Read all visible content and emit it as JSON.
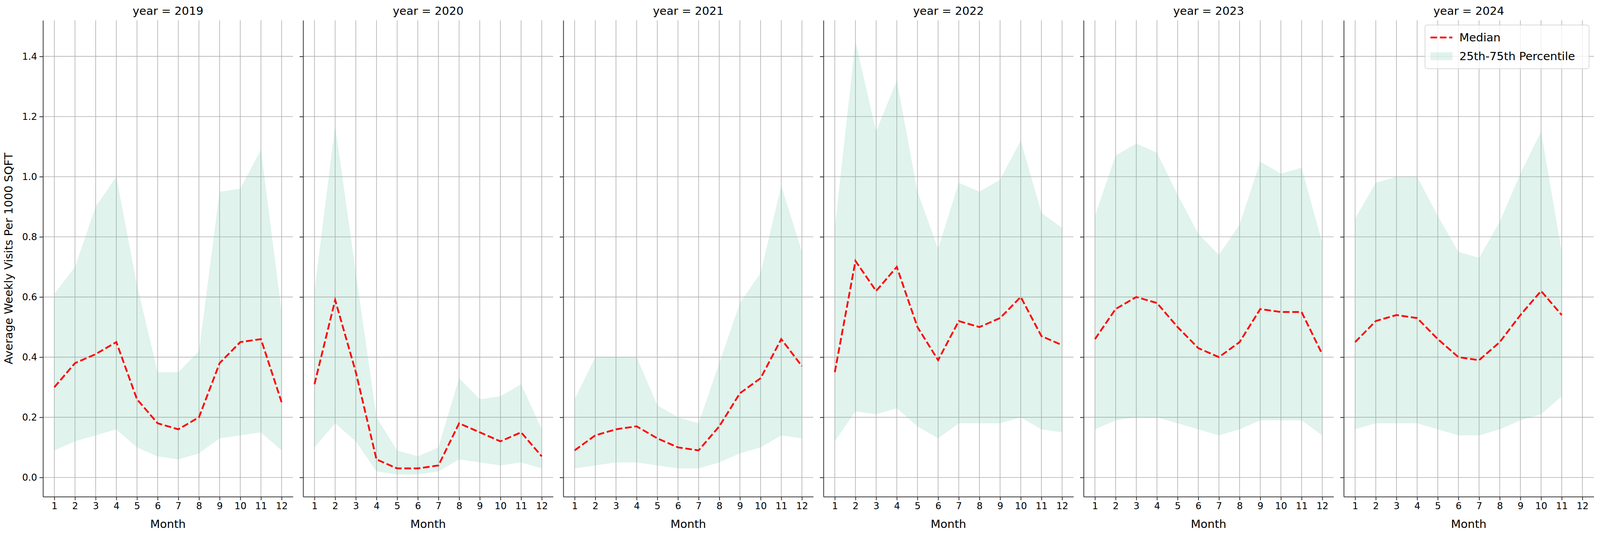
{
  "chart_data": [
    {
      "type": "line",
      "title": "year = 2019",
      "x_label": "Month",
      "y_label": "Average Weekly Visits Per 1000 SQFT",
      "x": [
        1,
        2,
        3,
        4,
        5,
        6,
        7,
        8,
        9,
        10,
        11,
        12
      ],
      "series": [
        {
          "name": "Median",
          "type": "line",
          "color": "#ff0000",
          "line_style": "dashed",
          "marker": "none",
          "values": [
            0.3,
            0.38,
            0.41,
            0.45,
            0.26,
            0.18,
            0.16,
            0.2,
            0.38,
            0.45,
            0.46,
            0.25
          ]
        },
        {
          "name": "25th-75th Percentile",
          "type": "area",
          "color": "#66c2a5",
          "lower": [
            0.09,
            0.12,
            0.14,
            0.16,
            0.1,
            0.07,
            0.06,
            0.08,
            0.13,
            0.14,
            0.15,
            0.09
          ],
          "upper": [
            0.61,
            0.7,
            0.9,
            1.0,
            0.64,
            0.35,
            0.35,
            0.42,
            0.95,
            0.96,
            1.09,
            0.55
          ]
        }
      ],
      "xlim": [
        0.45,
        12.55
      ],
      "xticks": [
        1,
        2,
        3,
        4,
        5,
        6,
        7,
        8,
        9,
        10,
        11,
        12
      ],
      "ylim": [
        -0.064,
        1.52
      ],
      "yticks": [
        {
          "value": 0,
          "label": "0.0"
        },
        {
          "value": 0.2,
          "label": "0.2"
        },
        {
          "value": 0.4,
          "label": "0.4"
        },
        {
          "value": 0.6,
          "label": "0.6"
        },
        {
          "value": 0.8,
          "label": "0.8"
        },
        {
          "value": 1.0,
          "label": "1.0"
        },
        {
          "value": 1.2,
          "label": "1.2"
        },
        {
          "value": 1.4,
          "label": "1.4"
        }
      ],
      "grid": true
    },
    {
      "type": "line",
      "title": "year = 2020",
      "x_label": "Month",
      "x": [
        1,
        2,
        3,
        4,
        5,
        6,
        7,
        8,
        9,
        10,
        11,
        12
      ],
      "series": [
        {
          "name": "Median",
          "type": "line",
          "color": "#ff0000",
          "line_style": "dashed",
          "marker": "none",
          "values": [
            0.31,
            0.59,
            0.35,
            0.06,
            0.03,
            0.03,
            0.04,
            0.18,
            0.15,
            0.12,
            0.15,
            0.07
          ]
        },
        {
          "name": "25th-75th Percentile",
          "type": "area",
          "color": "#66c2a5",
          "lower": [
            0.1,
            0.18,
            0.12,
            0.02,
            0.01,
            0.01,
            0.02,
            0.06,
            0.05,
            0.04,
            0.05,
            0.03
          ],
          "upper": [
            0.62,
            1.17,
            0.68,
            0.2,
            0.09,
            0.07,
            0.1,
            0.33,
            0.26,
            0.27,
            0.31,
            0.16
          ]
        }
      ],
      "xlim": [
        0.45,
        12.55
      ],
      "xticks": [
        1,
        2,
        3,
        4,
        5,
        6,
        7,
        8,
        9,
        10,
        11,
        12
      ],
      "ylim": [
        -0.064,
        1.52
      ],
      "yticks": [
        {
          "value": 0,
          "label": "0.0"
        },
        {
          "value": 0.2,
          "label": "0.2"
        },
        {
          "value": 0.4,
          "label": "0.4"
        },
        {
          "value": 0.6,
          "label": "0.6"
        },
        {
          "value": 0.8,
          "label": "0.8"
        },
        {
          "value": 1.0,
          "label": "1.0"
        },
        {
          "value": 1.2,
          "label": "1.2"
        },
        {
          "value": 1.4,
          "label": "1.4"
        }
      ],
      "grid": true,
      "tick_labels": "x"
    },
    {
      "type": "line",
      "title": "year = 2021",
      "x_label": "Month",
      "x": [
        1,
        2,
        3,
        4,
        5,
        6,
        7,
        8,
        9,
        10,
        11,
        12
      ],
      "series": [
        {
          "name": "Median",
          "type": "line",
          "color": "#ff0000",
          "line_style": "dashed",
          "marker": "none",
          "values": [
            0.09,
            0.14,
            0.16,
            0.17,
            0.13,
            0.1,
            0.09,
            0.17,
            0.28,
            0.33,
            0.46,
            0.37
          ]
        },
        {
          "name": "25th-75th Percentile",
          "type": "area",
          "color": "#66c2a5",
          "lower": [
            0.03,
            0.04,
            0.05,
            0.05,
            0.04,
            0.03,
            0.03,
            0.05,
            0.08,
            0.1,
            0.14,
            0.13
          ],
          "upper": [
            0.26,
            0.4,
            0.4,
            0.4,
            0.24,
            0.2,
            0.18,
            0.38,
            0.58,
            0.68,
            0.97,
            0.75
          ]
        }
      ],
      "xlim": [
        0.45,
        12.55
      ],
      "xticks": [
        1,
        2,
        3,
        4,
        5,
        6,
        7,
        8,
        9,
        10,
        11,
        12
      ],
      "ylim": [
        -0.064,
        1.52
      ],
      "yticks": [
        {
          "value": 0,
          "label": "0.0"
        },
        {
          "value": 0.2,
          "label": "0.2"
        },
        {
          "value": 0.4,
          "label": "0.4"
        },
        {
          "value": 0.6,
          "label": "0.6"
        },
        {
          "value": 0.8,
          "label": "0.8"
        },
        {
          "value": 1.0,
          "label": "1.0"
        },
        {
          "value": 1.2,
          "label": "1.2"
        },
        {
          "value": 1.4,
          "label": "1.4"
        }
      ],
      "grid": true,
      "tick_labels": "x"
    },
    {
      "type": "line",
      "title": "year = 2022",
      "x_label": "Month",
      "x": [
        1,
        2,
        3,
        4,
        5,
        6,
        7,
        8,
        9,
        10,
        11,
        12
      ],
      "series": [
        {
          "name": "Median",
          "type": "line",
          "color": "#ff0000",
          "line_style": "dashed",
          "marker": "none",
          "values": [
            0.35,
            0.72,
            0.62,
            0.7,
            0.5,
            0.39,
            0.52,
            0.5,
            0.53,
            0.6,
            0.47,
            0.44
          ]
        },
        {
          "name": "25th-75th Percentile",
          "type": "area",
          "color": "#66c2a5",
          "lower": [
            0.12,
            0.22,
            0.21,
            0.23,
            0.17,
            0.13,
            0.18,
            0.18,
            0.18,
            0.2,
            0.16,
            0.15
          ],
          "upper": [
            0.83,
            1.45,
            1.15,
            1.32,
            0.95,
            0.76,
            0.98,
            0.95,
            0.99,
            1.12,
            0.88,
            0.83
          ]
        }
      ],
      "xlim": [
        0.45,
        12.55
      ],
      "xticks": [
        1,
        2,
        3,
        4,
        5,
        6,
        7,
        8,
        9,
        10,
        11,
        12
      ],
      "ylim": [
        -0.064,
        1.52
      ],
      "yticks": [
        {
          "value": 0,
          "label": "0.0"
        },
        {
          "value": 0.2,
          "label": "0.2"
        },
        {
          "value": 0.4,
          "label": "0.4"
        },
        {
          "value": 0.6,
          "label": "0.6"
        },
        {
          "value": 0.8,
          "label": "0.8"
        },
        {
          "value": 1.0,
          "label": "1.0"
        },
        {
          "value": 1.2,
          "label": "1.2"
        },
        {
          "value": 1.4,
          "label": "1.4"
        }
      ],
      "grid": true,
      "tick_labels": "x"
    },
    {
      "type": "line",
      "title": "year = 2023",
      "x_label": "Month",
      "x": [
        1,
        2,
        3,
        4,
        5,
        6,
        7,
        8,
        9,
        10,
        11,
        12
      ],
      "series": [
        {
          "name": "Median",
          "type": "line",
          "color": "#ff0000",
          "line_style": "dashed",
          "marker": "none",
          "values": [
            0.46,
            0.56,
            0.6,
            0.58,
            0.5,
            0.43,
            0.4,
            0.45,
            0.56,
            0.55,
            0.55,
            0.41
          ]
        },
        {
          "name": "25th-75th Percentile",
          "type": "area",
          "color": "#66c2a5",
          "lower": [
            0.16,
            0.19,
            0.2,
            0.2,
            0.18,
            0.16,
            0.14,
            0.16,
            0.19,
            0.19,
            0.19,
            0.14
          ],
          "upper": [
            0.87,
            1.07,
            1.11,
            1.08,
            0.94,
            0.81,
            0.74,
            0.84,
            1.05,
            1.01,
            1.03,
            0.78
          ]
        }
      ],
      "xlim": [
        0.45,
        12.55
      ],
      "xticks": [
        1,
        2,
        3,
        4,
        5,
        6,
        7,
        8,
        9,
        10,
        11,
        12
      ],
      "ylim": [
        -0.064,
        1.52
      ],
      "yticks": [
        {
          "value": 0,
          "label": "0.0"
        },
        {
          "value": 0.2,
          "label": "0.2"
        },
        {
          "value": 0.4,
          "label": "0.4"
        },
        {
          "value": 0.6,
          "label": "0.6"
        },
        {
          "value": 0.8,
          "label": "0.8"
        },
        {
          "value": 1.0,
          "label": "1.0"
        },
        {
          "value": 1.2,
          "label": "1.2"
        },
        {
          "value": 1.4,
          "label": "1.4"
        }
      ],
      "grid": true,
      "tick_labels": "x"
    },
    {
      "type": "line",
      "title": "year = 2024",
      "x_label": "Month",
      "x": [
        1,
        2,
        3,
        4,
        5,
        6,
        7,
        8,
        9,
        10,
        11
      ],
      "series": [
        {
          "name": "Median",
          "type": "line",
          "color": "#ff0000",
          "line_style": "dashed",
          "marker": "none",
          "values": [
            0.45,
            0.52,
            0.54,
            0.53,
            0.46,
            0.4,
            0.39,
            0.45,
            0.54,
            0.62,
            0.54
          ]
        },
        {
          "name": "25th-75th Percentile",
          "type": "area",
          "color": "#66c2a5",
          "lower": [
            0.16,
            0.18,
            0.18,
            0.18,
            0.16,
            0.14,
            0.14,
            0.16,
            0.19,
            0.21,
            0.27
          ],
          "upper": [
            0.86,
            0.98,
            1.0,
            1.0,
            0.87,
            0.75,
            0.73,
            0.85,
            1.01,
            1.15,
            0.75
          ]
        }
      ],
      "xlim": [
        0.45,
        12.55
      ],
      "xticks": [
        1,
        2,
        3,
        4,
        5,
        6,
        7,
        8,
        9,
        10,
        11,
        12
      ],
      "ylim": [
        -0.064,
        1.52
      ],
      "yticks": [
        {
          "value": 0,
          "label": "0.0"
        },
        {
          "value": 0.2,
          "label": "0.2"
        },
        {
          "value": 0.4,
          "label": "0.4"
        },
        {
          "value": 0.6,
          "label": "0.6"
        },
        {
          "value": 0.8,
          "label": "0.8"
        },
        {
          "value": 1.0,
          "label": "1.0"
        },
        {
          "value": 1.2,
          "label": "1.2"
        },
        {
          "value": 1.4,
          "label": "1.4"
        }
      ],
      "grid": true,
      "tick_labels": "x",
      "legend": "upper right"
    }
  ]
}
